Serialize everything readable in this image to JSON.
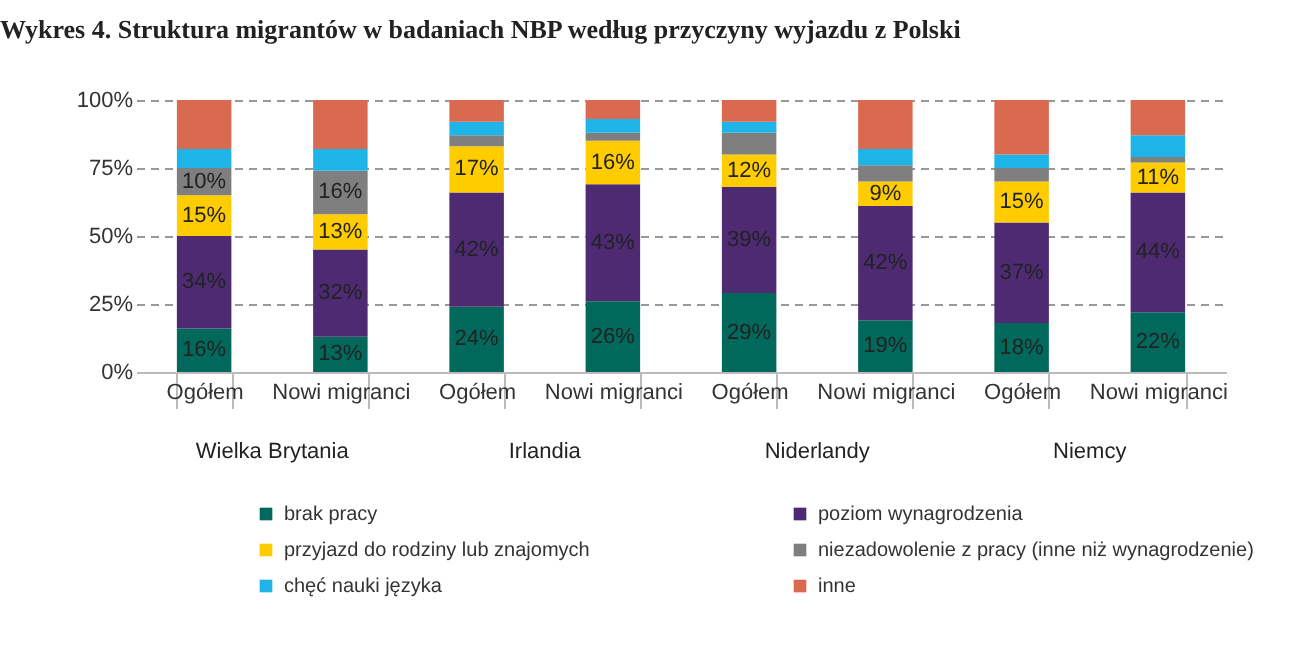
{
  "chart_data": {
    "type": "bar",
    "title": "Wykres 4. Struktura migrantów w badaniach NBP według przyczyny wyjazdu z Polski",
    "categories": [
      "Ogółem",
      "Nowi migranci",
      "Ogółem",
      "Nowi migranci",
      "Ogółem",
      "Nowi migranci",
      "Ogółem",
      "Nowi migranci"
    ],
    "annotations": [
      "Wielka Brytania",
      "Irlandia",
      "Niderlandy",
      "Niemcy"
    ],
    "stacked": true,
    "series": [
      {
        "name": "brak pracy",
        "color": "#00695c",
        "values": [
          16,
          13,
          24,
          26,
          29,
          19,
          18,
          22
        ],
        "value_labels": [
          "16%",
          "13%",
          "24%",
          "26%",
          "29%",
          "19%",
          "18%",
          "22%"
        ]
      },
      {
        "name": "poziom wynagrodzenia",
        "color": "#4d2a72",
        "values": [
          34,
          32,
          42,
          43,
          39,
          42,
          37,
          44
        ],
        "value_labels": [
          "34%",
          "32%",
          "42%",
          "43%",
          "39%",
          "42%",
          "37%",
          "44%"
        ]
      },
      {
        "name": "przyjazd do rodziny lub znajomych",
        "color": "#ffcc00",
        "values": [
          15,
          13,
          17,
          16,
          12,
          9,
          15,
          11
        ],
        "value_labels": [
          "15%",
          "13%",
          "17%",
          "16%",
          "12%",
          "9%",
          "15%",
          "11%"
        ]
      },
      {
        "name": "niezadowolenie z pracy (inne niż wynagrodzenie)",
        "color": "#7f7f7f",
        "values": [
          10,
          16,
          4,
          3,
          8,
          6,
          5,
          2
        ],
        "value_labels": [
          "10%",
          "16%",
          null,
          null,
          null,
          null,
          null,
          null
        ]
      },
      {
        "name": "chęć nauki języka",
        "color": "#1fb4e8",
        "values": [
          7,
          8,
          5,
          5,
          4,
          6,
          5,
          8
        ]
      },
      {
        "name": "inne",
        "color": "#d9694f",
        "values": [
          18,
          18,
          8,
          7,
          8,
          18,
          20,
          13
        ]
      }
    ],
    "ylim": [
      0,
      100
    ],
    "yticks": [
      {
        "value": 0,
        "label": "0%"
      },
      {
        "value": 25,
        "label": "25%"
      },
      {
        "value": 50,
        "label": "50%"
      },
      {
        "value": 75,
        "label": "75%"
      },
      {
        "value": 100,
        "label": "100%"
      }
    ],
    "grid": "y",
    "legend": "bottom"
  }
}
